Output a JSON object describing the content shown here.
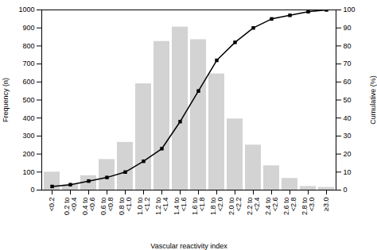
{
  "chart_data": {
    "type": "bar",
    "categories": [
      "<0.2",
      "0.2 to\n<0.4",
      "0.4 to\n<0.6",
      "0.6 to\n<0.8",
      "0.8 to\n<1.0",
      "1.0 to\n<1.2",
      "1.2 to\n<1.4",
      "1.4 to\n<1.6",
      "1.6 to\n<1.8",
      "1.8 to\n<2.0",
      "2.0 to\n<2.2",
      "2.2 to\n<2.4",
      "2.4 to\n<2.6",
      "2.6 to\n<2.8",
      "2.8 to\n<3.0",
      "≥3.0"
    ],
    "series": [
      {
        "type": "bar",
        "color": "#d3d3d3",
        "values": [
          100,
          30,
          80,
          170,
          265,
          590,
          825,
          905,
          835,
          645,
          395,
          250,
          135,
          65,
          20,
          15
        ]
      },
      {
        "type": "line",
        "axis": "y2",
        "color": "#000000",
        "marker": "square",
        "values": [
          2,
          3,
          5,
          7,
          10,
          16,
          23,
          38,
          55,
          72,
          82,
          90,
          95,
          97,
          99,
          100
        ]
      }
    ],
    "xlabel": "Vascular reactivity index",
    "ylabel": "Frequency (n)",
    "y2label": "Cumulative (%)",
    "ylim": [
      0,
      1000
    ],
    "yticks": [
      0,
      100,
      200,
      300,
      400,
      500,
      600,
      700,
      800,
      900,
      1000
    ],
    "y2lim": [
      0,
      100
    ],
    "y2ticks": [
      0,
      10,
      20,
      30,
      40,
      50,
      60,
      70,
      80,
      90,
      100
    ],
    "grid": false
  }
}
